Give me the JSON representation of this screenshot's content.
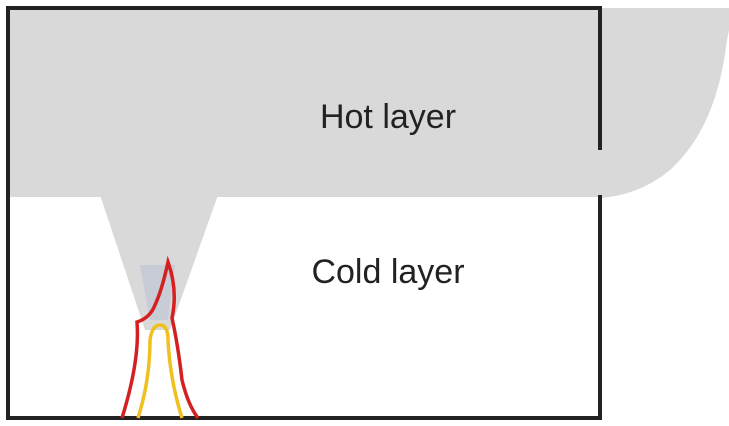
{
  "labels": {
    "hot": "Hot layer",
    "cold": "Cold layer"
  }
}
